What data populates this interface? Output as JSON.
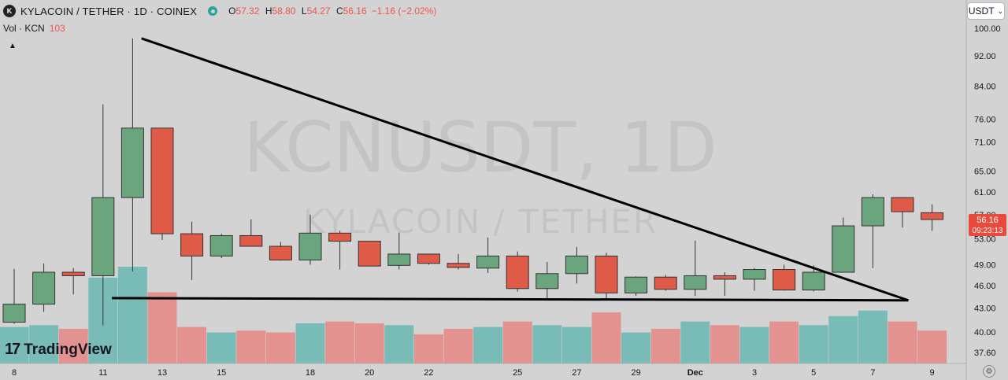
{
  "header": {
    "logo_text": "K",
    "title": "KYLACOIN / TETHER · 1D · COINEX",
    "open_label": "O",
    "open": "57.32",
    "high_label": "H",
    "high": "58.80",
    "low_label": "L",
    "low": "54.27",
    "close_label": "C",
    "close": "56.16",
    "change": "−1.16 (−2.02%)"
  },
  "volume_legend": {
    "label": "Vol · KCN",
    "value": "103"
  },
  "currency_button": {
    "label": "USDT",
    "icon": "chevron-down-icon"
  },
  "branding": {
    "mark": "17",
    "name": "TradingView"
  },
  "watermark": {
    "symbol": "KCNUSDT, 1D",
    "name": "KYLACOIN / TETHER"
  },
  "price_badge": {
    "price": "56.16",
    "countdown": "09:23:13"
  },
  "colors": {
    "up": "#6aa57e",
    "down": "#e05a48",
    "vol_up": "#79bbb6",
    "vol_down": "#e49290",
    "background": "#d3d3d3"
  },
  "chart_data": {
    "type": "candlestick",
    "y_scale": "log",
    "y_ticks": [
      "100.00",
      "92.00",
      "84.00",
      "76.00",
      "71.00",
      "65.00",
      "61.00",
      "57.00",
      "53.00",
      "49.00",
      "46.00",
      "43.00",
      "40.00",
      "37.60"
    ],
    "x_ticks": [
      "8",
      "11",
      "13",
      "15",
      "18",
      "20",
      "22",
      "25",
      "27",
      "29",
      "Dec",
      "3",
      "5",
      "7",
      "9"
    ],
    "candles": [
      {
        "o": 41.2,
        "h": 48.4,
        "l": 41.0,
        "c": 43.5
      },
      {
        "o": 43.5,
        "h": 49.2,
        "l": 42.5,
        "c": 47.9
      },
      {
        "o": 47.9,
        "h": 48.5,
        "l": 44.8,
        "c": 47.4
      },
      {
        "o": 47.4,
        "h": 79.5,
        "l": 40.8,
        "c": 60.0
      },
      {
        "o": 60.0,
        "h": 97.0,
        "l": 48.0,
        "c": 74.0
      },
      {
        "o": 74.0,
        "h": 74.0,
        "l": 52.8,
        "c": 53.8
      },
      {
        "o": 53.8,
        "h": 55.8,
        "l": 46.8,
        "c": 50.3
      },
      {
        "o": 50.3,
        "h": 53.8,
        "l": 50.0,
        "c": 53.5
      },
      {
        "o": 53.5,
        "h": 56.2,
        "l": 51.8,
        "c": 51.8
      },
      {
        "o": 51.8,
        "h": 52.5,
        "l": 49.6,
        "c": 49.7
      },
      {
        "o": 49.7,
        "h": 57.0,
        "l": 49.0,
        "c": 53.9
      },
      {
        "o": 53.9,
        "h": 54.3,
        "l": 48.3,
        "c": 52.6
      },
      {
        "o": 52.6,
        "h": 52.6,
        "l": 48.8,
        "c": 48.8
      },
      {
        "o": 48.9,
        "h": 54.0,
        "l": 48.3,
        "c": 50.6
      },
      {
        "o": 50.6,
        "h": 50.6,
        "l": 49.0,
        "c": 49.2
      },
      {
        "o": 49.2,
        "h": 50.6,
        "l": 48.3,
        "c": 48.6
      },
      {
        "o": 48.5,
        "h": 53.2,
        "l": 47.8,
        "c": 50.3
      },
      {
        "o": 50.3,
        "h": 51.0,
        "l": 45.2,
        "c": 45.6
      },
      {
        "o": 45.6,
        "h": 49.4,
        "l": 44.0,
        "c": 47.7
      },
      {
        "o": 47.7,
        "h": 51.7,
        "l": 46.3,
        "c": 50.3
      },
      {
        "o": 50.3,
        "h": 50.8,
        "l": 44.2,
        "c": 45.0
      },
      {
        "o": 45.0,
        "h": 47.3,
        "l": 44.6,
        "c": 47.2
      },
      {
        "o": 47.2,
        "h": 47.5,
        "l": 45.3,
        "c": 45.5
      },
      {
        "o": 45.5,
        "h": 52.7,
        "l": 44.6,
        "c": 47.4
      },
      {
        "o": 47.4,
        "h": 47.9,
        "l": 44.6,
        "c": 46.9
      },
      {
        "o": 46.9,
        "h": 48.5,
        "l": 45.3,
        "c": 48.3
      },
      {
        "o": 48.3,
        "h": 49.0,
        "l": 45.3,
        "c": 45.4
      },
      {
        "o": 45.4,
        "h": 48.9,
        "l": 45.2,
        "c": 47.9
      },
      {
        "o": 47.9,
        "h": 56.5,
        "l": 47.9,
        "c": 55.1
      },
      {
        "o": 55.1,
        "h": 60.6,
        "l": 48.5,
        "c": 60.0
      },
      {
        "o": 60.0,
        "h": 60.0,
        "l": 54.8,
        "c": 57.5
      },
      {
        "o": 57.32,
        "h": 58.8,
        "l": 54.27,
        "c": 56.16
      }
    ],
    "volume_relative": [
      0.2,
      0.21,
      0.19,
      0.47,
      0.53,
      0.39,
      0.2,
      0.17,
      0.18,
      0.17,
      0.22,
      0.23,
      0.22,
      0.21,
      0.16,
      0.19,
      0.2,
      0.23,
      0.21,
      0.2,
      0.28,
      0.17,
      0.19,
      0.23,
      0.21,
      0.2,
      0.23,
      0.21,
      0.26,
      0.29,
      0.23,
      0.18
    ],
    "trendlines": [
      {
        "from": {
          "bar": 4.3,
          "price": 97.0
        },
        "to": {
          "bar": 30.2,
          "price": 44.0
        }
      },
      {
        "from": {
          "bar": 3.3,
          "price": 44.3
        },
        "to": {
          "bar": 30.2,
          "price": 44.0
        }
      }
    ]
  }
}
